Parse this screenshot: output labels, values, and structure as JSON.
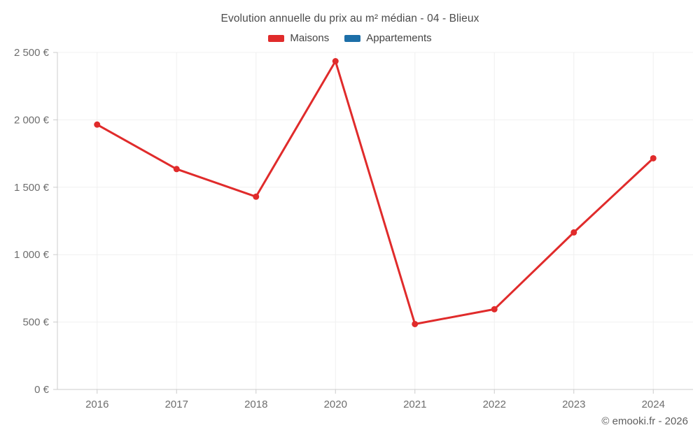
{
  "header": {
    "title": "Evolution annuelle du prix au m² médian - 04 - Blieux"
  },
  "legend": {
    "items": [
      {
        "label": "Maisons",
        "color": "#e02b2b"
      },
      {
        "label": "Appartements",
        "color": "#1d6fa8"
      }
    ]
  },
  "footer": {
    "credit": "© emooki.fr - 2026"
  },
  "chart_data": {
    "type": "line",
    "title": "Evolution annuelle du prix au m² médian - 04 - Blieux",
    "categories": [
      "2016",
      "2017",
      "2018",
      "2020",
      "2021",
      "2022",
      "2023",
      "2024"
    ],
    "series": [
      {
        "name": "Maisons",
        "color": "#e02b2b",
        "values": [
          1965,
          1635,
          1430,
          2435,
          485,
          595,
          1165,
          1715
        ]
      },
      {
        "name": "Appartements",
        "color": "#1d6fa8",
        "values": []
      }
    ],
    "xlabel": "",
    "ylabel": "",
    "ylim": [
      0,
      2500
    ],
    "ytick_step": 500,
    "ytick_labels": [
      "0 €",
      "500 €",
      "1 000 €",
      "1 500 €",
      "2 000 €",
      "2 500 €"
    ],
    "grid": true,
    "legend_position": "top",
    "colors": {
      "gridline": "#f0f0f0",
      "axis": "#cccccc",
      "tick_text": "#6e6e6e"
    }
  }
}
